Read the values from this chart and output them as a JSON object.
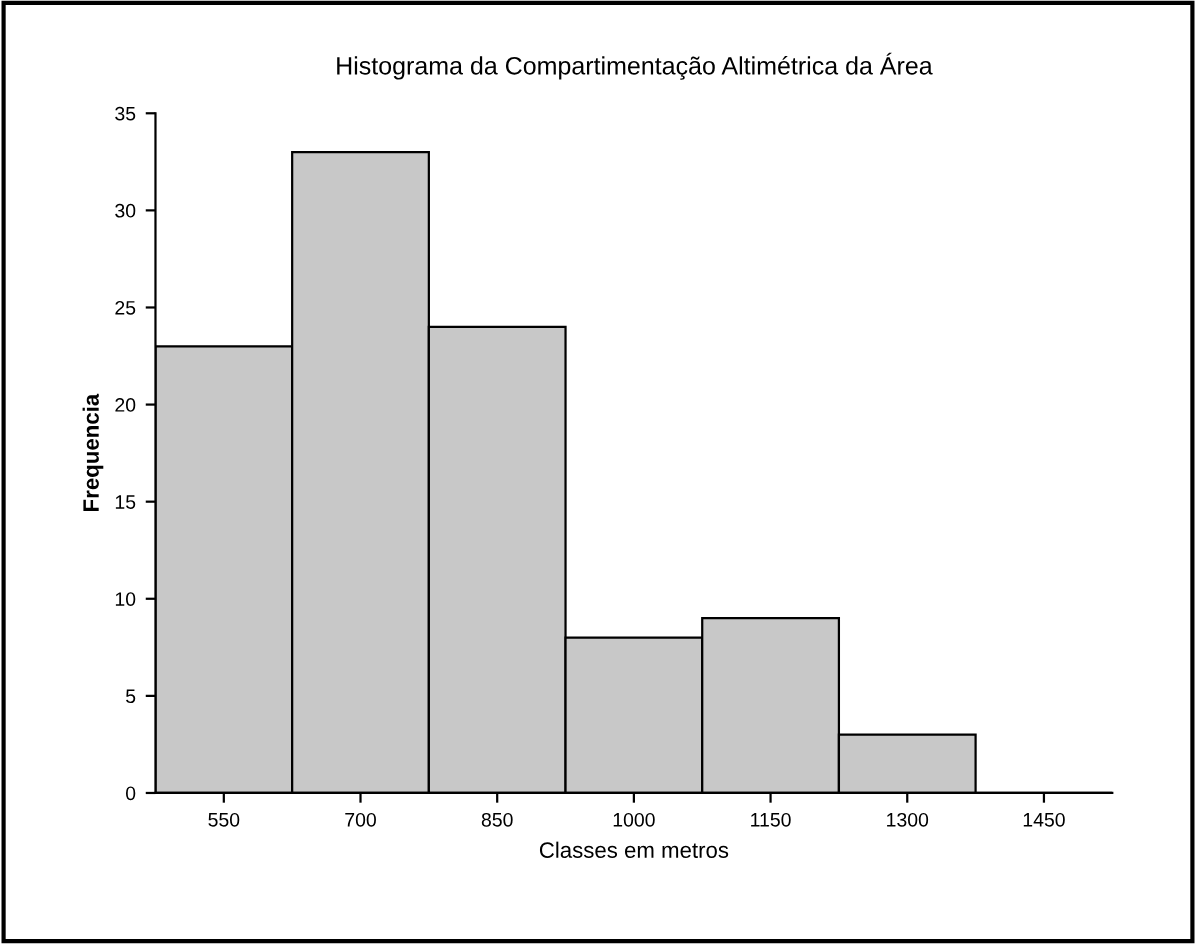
{
  "chart_data": {
    "type": "bar",
    "title": "Histograma da Compartimentação Altimétrica da Área",
    "xlabel": "Classes em metros",
    "ylabel": "Frequencia",
    "categories": [
      "550",
      "700",
      "850",
      "1000",
      "1150",
      "1300",
      "1450"
    ],
    "values": [
      23,
      33,
      24,
      8,
      9,
      3,
      0
    ],
    "color": "#c8c8c8",
    "ylim": [
      0,
      35
    ],
    "yticks": [
      0,
      5,
      10,
      15,
      20,
      25,
      30,
      35
    ],
    "grid": false
  }
}
